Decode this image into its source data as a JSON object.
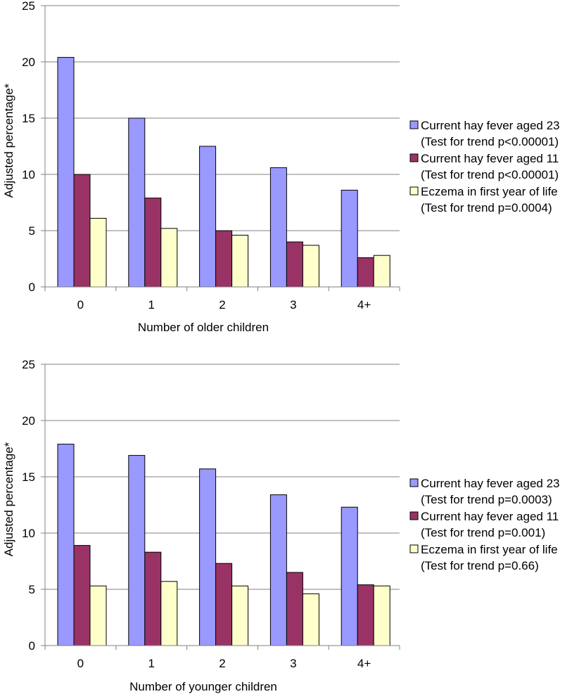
{
  "colors": {
    "background": "#ffffff",
    "axis": "#808080",
    "gridline": "#808080",
    "bar_edge": "#000000"
  },
  "chart_data": [
    {
      "type": "bar",
      "title": "",
      "xlabel": "Number of older children",
      "ylabel": "Adjusted percentage*",
      "ylim": [
        0,
        25
      ],
      "yticks": [
        0,
        5,
        10,
        15,
        20,
        25
      ],
      "grid": true,
      "legend_position": "right",
      "categories": [
        "0",
        "1",
        "2",
        "3",
        "4+"
      ],
      "series": [
        {
          "name": "Current hay fever aged 23",
          "legend_sub": "(Test for trend p<0.00001)",
          "color": "#9999ff",
          "values": [
            20.4,
            15.0,
            12.5,
            10.6,
            8.6
          ]
        },
        {
          "name": "Current hay fever aged 11",
          "legend_sub": "(Test for trend p<0.00001)",
          "color": "#993366",
          "values": [
            10.0,
            7.9,
            5.0,
            4.0,
            2.6
          ]
        },
        {
          "name": "Eczema in first year of life",
          "legend_sub": "(Test for trend p=0.0004)",
          "color": "#ffffcc",
          "values": [
            6.1,
            5.2,
            4.6,
            3.7,
            2.8
          ]
        }
      ]
    },
    {
      "type": "bar",
      "title": "",
      "xlabel": "Number of younger children",
      "ylabel": "Adjusted percentage*",
      "ylim": [
        0,
        25
      ],
      "yticks": [
        0,
        5,
        10,
        15,
        20,
        25
      ],
      "grid": true,
      "legend_position": "right",
      "categories": [
        "0",
        "1",
        "2",
        "3",
        "4+"
      ],
      "series": [
        {
          "name": "Current hay fever aged 23",
          "legend_sub": "(Test for trend p=0.0003)",
          "color": "#9999ff",
          "values": [
            17.9,
            16.9,
            15.7,
            13.4,
            12.3
          ]
        },
        {
          "name": "Current hay fever aged 11",
          "legend_sub": "(Test for trend p=0.001)",
          "color": "#993366",
          "values": [
            8.9,
            8.3,
            7.3,
            6.5,
            5.4
          ]
        },
        {
          "name": "Eczema in first year of life",
          "legend_sub": "(Test for trend p=0.66)",
          "color": "#ffffcc",
          "values": [
            5.3,
            5.7,
            5.3,
            4.6,
            5.3
          ]
        }
      ]
    }
  ]
}
